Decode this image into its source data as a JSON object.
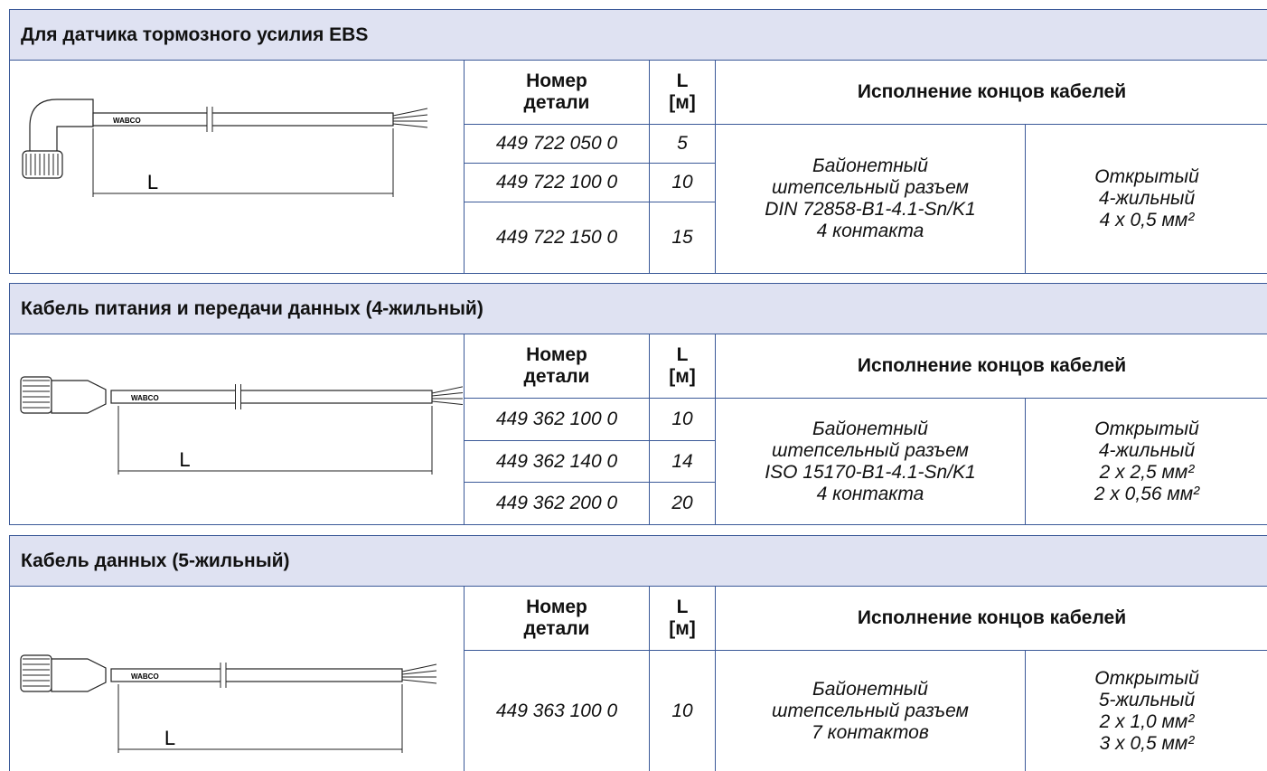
{
  "sections": [
    {
      "title": "Для датчика тормозного усилия EBS",
      "drawing": {
        "brand": "WABCO",
        "dimension": "L"
      },
      "table": {
        "header": [
          "Номер\nдетали",
          "L\n[м]",
          "Исполнение концов кабелей"
        ],
        "rows": [
          [
            "449 722 050 0",
            "5"
          ],
          [
            "449 722 100 0",
            "10"
          ],
          [
            "449 722 150 0",
            "15"
          ]
        ],
        "connector": "Байонетный\nштепсельный разъем\nDIN 72858-B1-4.1-Sn/K1\n4 контакта",
        "cable_end": "Открытый\n4-жильный\n4 x 0,5 мм²"
      }
    },
    {
      "title": "Кабель питания и передачи данных (4-жильный)",
      "drawing": {
        "brand": "WABCO",
        "dimension": "L"
      },
      "table": {
        "header": [
          "Номер\nдетали",
          "L\n[м]",
          "Исполнение концов кабелей"
        ],
        "rows": [
          [
            "449 362 100 0",
            "10"
          ],
          [
            "449 362 140 0",
            "14"
          ],
          [
            "449 362 200 0",
            "20"
          ]
        ],
        "connector": "Байонетный\nштепсельный разъем\nISO 15170-B1-4.1-Sn/K1\n4 контакта",
        "cable_end": "Открытый\n4-жильный\n2 x 2,5 мм²\n2 x 0,56 мм²"
      }
    },
    {
      "title": "Кабель данных (5-жильный)",
      "drawing": {
        "brand": "WABCO",
        "dimension": "L"
      },
      "table": {
        "header": [
          "Номер\nдетали",
          "L\n[м]",
          "Исполнение концов кабелей"
        ],
        "rows": [
          [
            "449 363 100 0",
            "10"
          ]
        ],
        "connector": "Байонетный\nштепсельный разъем\n7 контактов",
        "cable_end": "Открытый\n5-жильный\n2 x 1,0 мм²\n3 x 0,5 мм²"
      }
    }
  ]
}
